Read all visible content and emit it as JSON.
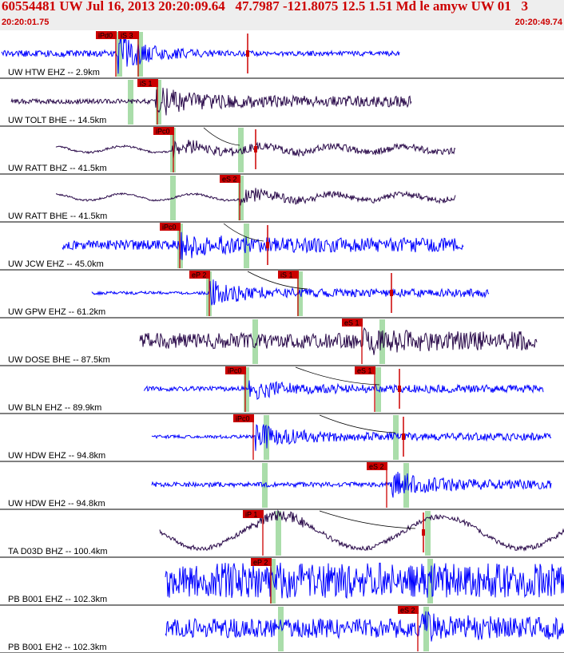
{
  "header": {
    "title": "60554481 UW Jul 16, 2013 20:20:09.64   47.7987 -121.8075 12.5 1.51 Md le amyw UW 01   3",
    "start_time": "20:20:01.75",
    "end_time": "20:20:49.74"
  },
  "colors": {
    "blue_trace": "#0000ff",
    "purple_trace": "#2a0a4a",
    "pick_red": "#cc0000",
    "window_green": "#aaddaa",
    "header_bg": "#eeeeee"
  },
  "traces": [
    {
      "label": "UW HTW EHZ -- 2.9km",
      "color": "blue",
      "picks": [
        {
          "text": "iPd0"
        },
        {
          "text": "iS 3"
        }
      ]
    },
    {
      "label": "UW TOLT BHE -- 14.5km",
      "color": "purple",
      "picks": [
        {
          "text": "iS 1"
        }
      ]
    },
    {
      "label": "UW RATT BHZ -- 41.5km",
      "color": "purple",
      "picks": [
        {
          "text": "iPc0"
        }
      ]
    },
    {
      "label": "UW RATT BHE -- 41.5km",
      "color": "purple",
      "picks": [
        {
          "text": "eS 2"
        }
      ]
    },
    {
      "label": "UW JCW EHZ -- 45.0km",
      "color": "blue",
      "picks": [
        {
          "text": "iPc0"
        }
      ]
    },
    {
      "label": "UW GPW EHZ -- 61.2km",
      "color": "blue",
      "picks": [
        {
          "text": "eP 2"
        },
        {
          "text": "iS 1"
        }
      ]
    },
    {
      "label": "UW DOSE BHE -- 87.5km",
      "color": "purple",
      "picks": [
        {
          "text": "eS 1"
        }
      ]
    },
    {
      "label": "UW BLN EHZ -- 89.9km",
      "color": "blue",
      "picks": [
        {
          "text": "iPc0"
        },
        {
          "text": "eS 1"
        }
      ]
    },
    {
      "label": "UW HDW EHZ -- 94.8km",
      "color": "blue",
      "picks": [
        {
          "text": "iPc0"
        }
      ]
    },
    {
      "label": "UW HDW EH2 -- 94.8km",
      "color": "blue",
      "picks": [
        {
          "text": "eS 2"
        }
      ]
    },
    {
      "label": "TA D03D BHZ -- 100.4km",
      "color": "purple",
      "picks": [
        {
          "text": "iP 1"
        }
      ]
    },
    {
      "label": "PB B001 EHZ -- 102.3km",
      "color": "blue",
      "picks": [
        {
          "text": "eP 2"
        }
      ]
    },
    {
      "label": "PB B001 EH2 -- 102.3km",
      "color": "blue",
      "picks": [
        {
          "text": "eS 2"
        }
      ]
    }
  ]
}
